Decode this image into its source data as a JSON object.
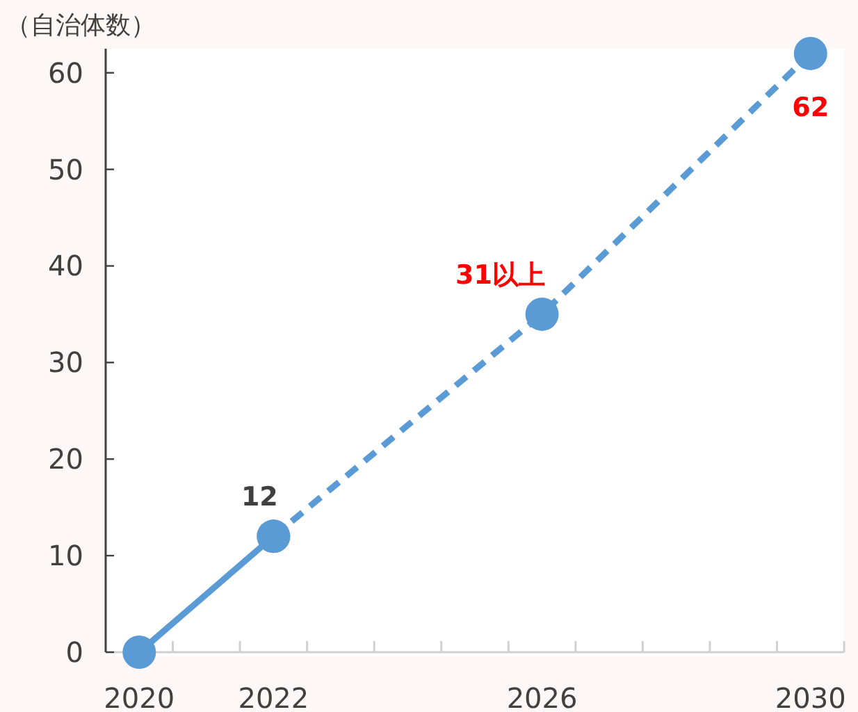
{
  "chart_data": {
    "type": "line",
    "ylabel": "（自治体数）",
    "series": [
      {
        "color": "#5b9bd5",
        "line_style": "solid",
        "x": [
          2020,
          2022
        ],
        "values": [
          0,
          12
        ],
        "value_labels": [
          null,
          "12"
        ]
      },
      {
        "color": "#5b9bd5",
        "line_style": "dashed",
        "x": [
          2022,
          2026,
          2030
        ],
        "values": [
          12,
          35,
          62
        ],
        "value_labels": [
          null,
          null,
          "62"
        ]
      }
    ],
    "annotations": [
      {
        "text": "31以上",
        "x": 2026,
        "y": 35
      }
    ],
    "xlim": [
      2019.5,
      2030.5
    ],
    "xticks": [
      2020,
      2022,
      2026,
      2030,
      {
        "value": 2020.5,
        "label": null
      },
      {
        "value": 2021.5,
        "label": null
      },
      {
        "value": 2022.5,
        "label": null
      },
      {
        "value": 2023.5,
        "label": null
      },
      {
        "value": 2024.5,
        "label": null
      },
      {
        "value": 2025.5,
        "label": null
      },
      {
        "value": 2026.5,
        "label": null
      },
      {
        "value": 2027.5,
        "label": null
      },
      {
        "value": 2028.5,
        "label": null
      },
      {
        "value": 2029.5,
        "label": null
      },
      {
        "value": 2030.5,
        "label": null
      }
    ],
    "ylim": [
      0,
      62.5
    ],
    "yticks": [
      0,
      10,
      20,
      30,
      40,
      50,
      60
    ],
    "marker": "circle",
    "grid": false
  }
}
